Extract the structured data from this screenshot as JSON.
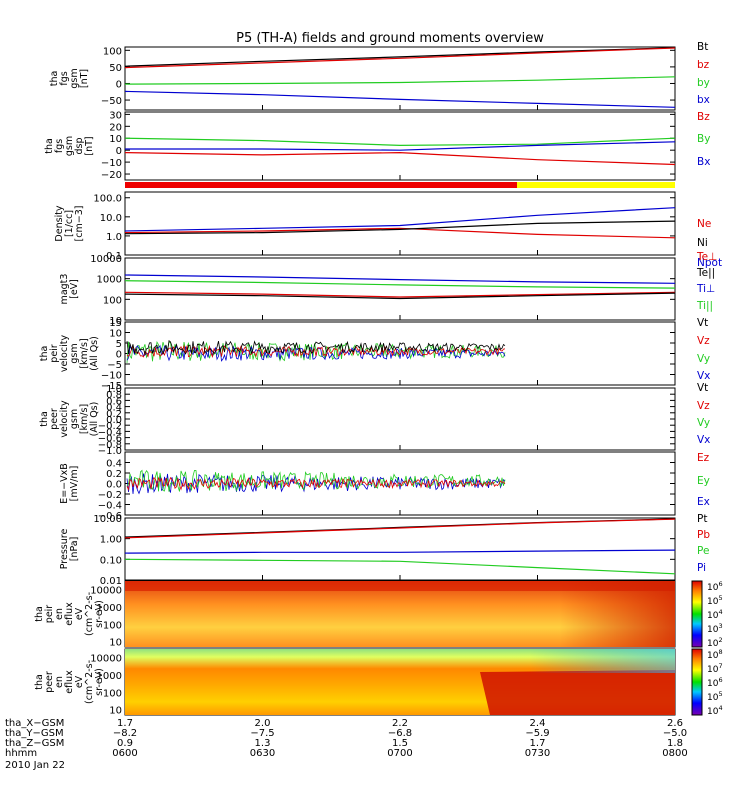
{
  "title": "P5 (TH-A) fields and ground moments overview",
  "colors": {
    "black": "#000000",
    "red": "#e00000",
    "green": "#22cc22",
    "blue": "#0000d0",
    "yellow": "#ffff00"
  },
  "chart_data": [
    {
      "type": "line",
      "panel": "fgs-gsm",
      "ylabel": [
        "tha",
        "fgs",
        "gsm",
        "[nT]"
      ],
      "ylim": [
        -80,
        110
      ],
      "yticks": [
        "100",
        "50",
        "0",
        "−50"
      ],
      "ytick_values": [
        100,
        50,
        0,
        -50
      ],
      "legend": [
        "Bt",
        "bz",
        "by",
        "bx"
      ],
      "series": [
        {
          "name": "Bt",
          "color": "black",
          "x": [
            "0600",
            "0630",
            "0700",
            "0730",
            "0800"
          ],
          "values": [
            52,
            67,
            80,
            95,
            108
          ]
        },
        {
          "name": "bz",
          "color": "red",
          "x": [
            "0600",
            "0630",
            "0700",
            "0730",
            "0800"
          ],
          "values": [
            48,
            62,
            76,
            92,
            107
          ]
        },
        {
          "name": "by",
          "color": "green",
          "x": [
            "0600",
            "0630",
            "0700",
            "0730",
            "0800"
          ],
          "values": [
            -2,
            0,
            3,
            10,
            20
          ]
        },
        {
          "name": "bx",
          "color": "blue",
          "x": [
            "0600",
            "0630",
            "0700",
            "0730",
            "0800"
          ],
          "values": [
            -24,
            -34,
            -48,
            -60,
            -72
          ]
        }
      ]
    },
    {
      "type": "line",
      "panel": "fgs-gsm-dsp",
      "ylabel": [
        "tha",
        "fgs",
        "gsm",
        "dsp",
        "[nT]"
      ],
      "ylim": [
        -25,
        32
      ],
      "yticks": [
        "30",
        "20",
        "10",
        "0",
        "−10",
        "−20"
      ],
      "ytick_values": [
        30,
        20,
        10,
        0,
        -10,
        -20
      ],
      "legend": [
        "Bz",
        "By",
        "Bx"
      ],
      "series": [
        {
          "name": "Bz",
          "color": "red",
          "x": [
            "0600",
            "0630",
            "0700",
            "0730",
            "0800"
          ],
          "values": [
            -2,
            -4,
            -2,
            -8,
            -12
          ]
        },
        {
          "name": "By",
          "color": "green",
          "x": [
            "0600",
            "0630",
            "0700",
            "0730",
            "0800"
          ],
          "values": [
            10,
            8,
            4,
            5,
            10
          ]
        },
        {
          "name": "Bx",
          "color": "blue",
          "x": [
            "0600",
            "0630",
            "0700",
            "0730",
            "0800"
          ],
          "values": [
            1,
            1,
            0,
            4,
            7
          ]
        }
      ]
    },
    {
      "type": "line",
      "panel": "density",
      "ylabel": [
        "Density",
        "[1/cc]",
        "[cm−3]"
      ],
      "yscale": "log",
      "ylim": [
        0.1,
        200
      ],
      "yticks": [
        "100.0",
        "10.0",
        "1.0",
        "0.1"
      ],
      "ytick_values": [
        100,
        10,
        1,
        0.1
      ],
      "legend": [
        "Ne",
        "Ni",
        "Npot"
      ],
      "series": [
        {
          "name": "Ne",
          "color": "red",
          "x": [
            "0600",
            "0630",
            "0700",
            "0730",
            "0800"
          ],
          "values": [
            1.5,
            1.8,
            2.5,
            1.2,
            0.8
          ]
        },
        {
          "name": "Ni",
          "color": "black",
          "x": [
            "0600",
            "0630",
            "0700",
            "0730",
            "0800"
          ],
          "values": [
            1.3,
            1.5,
            2.2,
            4.5,
            6
          ]
        },
        {
          "name": "Npot",
          "color": "blue",
          "x": [
            "0600",
            "0630",
            "0700",
            "0730",
            "0800"
          ],
          "values": [
            1.8,
            2.5,
            3.5,
            12,
            30
          ]
        }
      ]
    },
    {
      "type": "line",
      "panel": "temperature",
      "ylabel": [
        "magt3",
        "[eV]"
      ],
      "yscale": "log",
      "ylim": [
        10,
        10000
      ],
      "yticks": [
        "10000",
        "1000",
        "100",
        "10"
      ],
      "ytick_values": [
        10000,
        1000,
        100,
        10
      ],
      "legend": [
        "Te⊥",
        "Te||",
        "Ti⊥",
        "Ti||"
      ],
      "series": [
        {
          "name": "Te⊥",
          "color": "red",
          "x": [
            "0600",
            "0630",
            "0700",
            "0730",
            "0800"
          ],
          "values": [
            220,
            180,
            130,
            170,
            220
          ]
        },
        {
          "name": "Te||",
          "color": "black",
          "x": [
            "0600",
            "0630",
            "0700",
            "0730",
            "0800"
          ],
          "values": [
            180,
            150,
            110,
            150,
            200
          ]
        },
        {
          "name": "Ti⊥",
          "color": "blue",
          "x": [
            "0600",
            "0630",
            "0700",
            "0730",
            "0800"
          ],
          "values": [
            1500,
            1200,
            900,
            700,
            600
          ]
        },
        {
          "name": "Ti||",
          "color": "green",
          "x": [
            "0600",
            "0630",
            "0700",
            "0730",
            "0800"
          ],
          "values": [
            800,
            650,
            500,
            400,
            350
          ]
        }
      ]
    },
    {
      "type": "line",
      "panel": "peir-velocity",
      "ylabel": [
        "tha",
        "peir",
        "velocity",
        "gsm",
        "[km/s]",
        "(All Qs)"
      ],
      "ylim": [
        -15,
        15
      ],
      "yticks": [
        "15",
        "10",
        "5",
        "0",
        "−5",
        "−10",
        "−15"
      ],
      "ytick_values": [
        15,
        10,
        5,
        0,
        -5,
        -10,
        -15
      ],
      "legend": [
        "Vt",
        "Vz",
        "Vy",
        "Vx"
      ]
    },
    {
      "type": "line",
      "panel": "peer-velocity",
      "ylabel": [
        "tha",
        "peer",
        "velocity",
        "gsm",
        "[km/s]",
        "(All Qs)"
      ],
      "ylim": [
        -1,
        1
      ],
      "yticks": [
        "1.0",
        "0.8",
        "0.6",
        "0.4",
        "0.2",
        "0.0",
        "−0.2",
        "−0.4",
        "−0.6",
        "−0.8",
        "−1.0"
      ],
      "ytick_values": [
        1,
        0.8,
        0.6,
        0.4,
        0.2,
        0,
        -0.2,
        -0.4,
        -0.6,
        -0.8,
        -1
      ],
      "legend": [
        "Vt",
        "Vz",
        "Vy",
        "Vx"
      ]
    },
    {
      "type": "line",
      "panel": "e-field",
      "ylabel": [
        "E=−VxB",
        "[mV/m]"
      ],
      "ylim": [
        -0.6,
        0.6
      ],
      "yticks": [
        "0.4",
        "0.2",
        "0.0",
        "−0.2",
        "−0.4",
        "−0.6"
      ],
      "ytick_values": [
        0.4,
        0.2,
        0,
        -0.2,
        -0.4,
        -0.6
      ],
      "legend": [
        "Ez",
        "Ey",
        "Ex"
      ]
    },
    {
      "type": "line",
      "panel": "pressure",
      "ylabel": [
        "Pressure",
        "[nPa]"
      ],
      "yscale": "log",
      "ylim": [
        0.01,
        10
      ],
      "yticks": [
        "10.00",
        "1.00",
        "0.10",
        "0.01"
      ],
      "ytick_values": [
        10,
        1,
        0.1,
        0.01
      ],
      "legend": [
        "Pt",
        "Pb",
        "Pe",
        "Pi"
      ],
      "series": [
        {
          "name": "Pt",
          "color": "black",
          "x": [
            "0600",
            "0630",
            "0700",
            "0730",
            "0800"
          ],
          "values": [
            1.2,
            2.0,
            3.5,
            6,
            9
          ]
        },
        {
          "name": "Pb",
          "color": "red",
          "x": [
            "0600",
            "0630",
            "0700",
            "0730",
            "0800"
          ],
          "values": [
            1.1,
            1.9,
            3.3,
            5.8,
            8.8
          ]
        },
        {
          "name": "Pe",
          "color": "blue",
          "x": [
            "0600",
            "0630",
            "0700",
            "0730",
            "0800"
          ],
          "values": [
            0.2,
            0.22,
            0.22,
            0.25,
            0.28
          ]
        },
        {
          "name": "Pi",
          "color": "green",
          "x": [
            "0600",
            "0630",
            "0700",
            "0730",
            "0800"
          ],
          "values": [
            0.1,
            0.09,
            0.08,
            0.04,
            0.02
          ]
        }
      ]
    },
    {
      "type": "heatmap",
      "panel": "peir-en-eflux",
      "ylabel": [
        "tha",
        "peir",
        "en",
        "eflux",
        "eV",
        "(cm^2-s-",
        "sr-eV)"
      ],
      "yscale": "log",
      "ylim": [
        5,
        30000
      ],
      "yticks": [
        "10000",
        "1000",
        "100",
        "10"
      ],
      "ytick_values": [
        10000,
        1000,
        100,
        10
      ],
      "colorbar_ticks": [
        "10^6",
        "10^5",
        "10^4",
        "10^3",
        "10^2"
      ]
    },
    {
      "type": "heatmap",
      "panel": "peer-en-eflux",
      "ylabel": [
        "tha",
        "peer",
        "en",
        "eflux",
        "eV",
        "(cm^2-s-",
        "sr-eV)"
      ],
      "yscale": "log",
      "ylim": [
        5,
        30000
      ],
      "yticks": [
        "10000",
        "1000",
        "100",
        "10"
      ],
      "ytick_values": [
        10000,
        1000,
        100,
        10
      ],
      "colorbar_ticks": [
        "10^8",
        "10^7",
        "10^6",
        "10^5",
        "10^4"
      ]
    }
  ],
  "x_axis": {
    "rows": [
      {
        "label": "tha_X−GSM",
        "values": [
          "1.7",
          "2.0",
          "2.2",
          "2.4",
          "2.6"
        ]
      },
      {
        "label": "tha_Y−GSM",
        "values": [
          "−8.2",
          "−7.5",
          "−6.8",
          "−5.9",
          "−5.0"
        ]
      },
      {
        "label": "tha_Z−GSM",
        "values": [
          "0.9",
          "1.3",
          "1.5",
          "1.7",
          "1.8"
        ]
      },
      {
        "label": "hhmm",
        "values": [
          "0600",
          "0630",
          "0700",
          "0730",
          "0800"
        ]
      }
    ],
    "date": "2010 Jan 22"
  }
}
